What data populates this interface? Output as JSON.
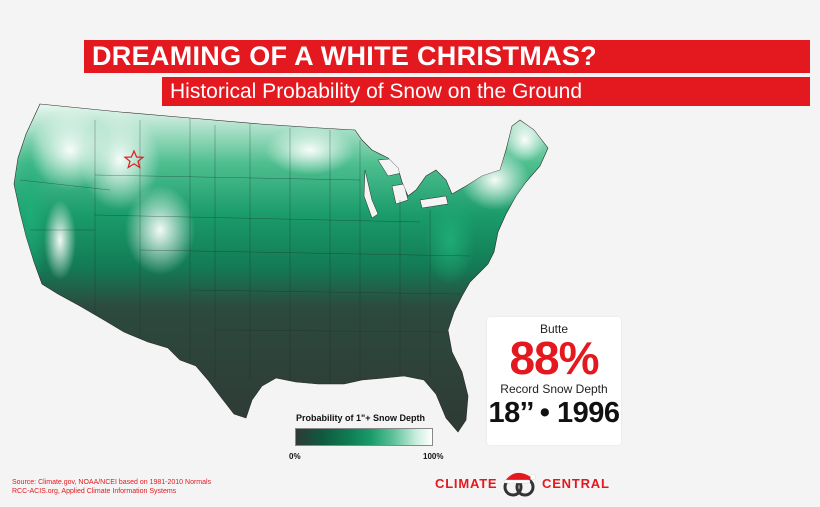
{
  "header": {
    "title": "DREAMING OF A WHITE CHRISTMAS?",
    "subtitle": "Historical Probability of Snow on the Ground"
  },
  "map": {
    "region": "Contiguous United States",
    "variable": "Probability of 1\"+ snow depth on Christmas",
    "color_low": "#2f3a35",
    "color_high": "#ffffff",
    "accent_color": "#1a9b6b",
    "marker_icon": "star-icon",
    "marker_color": "#e3191f"
  },
  "info_card": {
    "city": "Butte",
    "probability": "88%",
    "record_label": "Record Snow Depth",
    "record_value": "18’’ • 1996"
  },
  "legend": {
    "title": "Probability of 1\"+ Snow Depth",
    "min_label": "0%",
    "max_label": "100%"
  },
  "source": {
    "line1": "Source: Climate.gov, NOAA/NCEI based on 1981-2010 Normals",
    "line2": "RCC-ACIS.org, Applied Climate Information Systems"
  },
  "brand": {
    "left": "CLIMATE",
    "right": "CENTRAL",
    "color": "#e3191f"
  }
}
